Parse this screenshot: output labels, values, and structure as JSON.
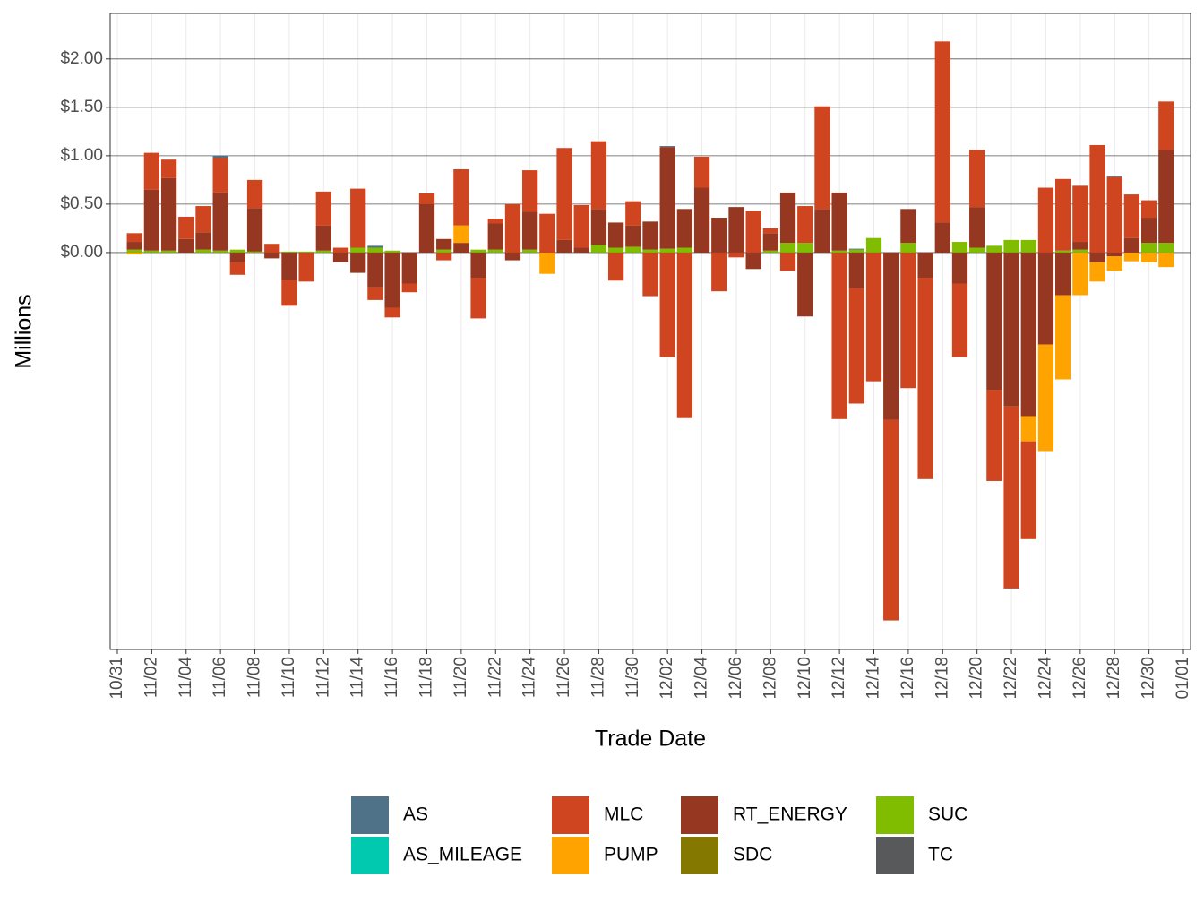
{
  "chart_data": {
    "type": "stacked-bar",
    "x_label": "Trade Date",
    "y_label": "Millions",
    "categories": [
      "10/31",
      null,
      "11/02",
      null,
      "11/04",
      null,
      "11/06",
      null,
      "11/08",
      null,
      "11/10",
      null,
      "11/12",
      null,
      "11/14",
      null,
      "11/16",
      null,
      "11/18",
      null,
      "11/20",
      null,
      "11/22",
      null,
      "11/24",
      null,
      "11/26",
      null,
      "11/28",
      null,
      "11/30",
      null,
      "12/02",
      null,
      "12/04",
      null,
      "12/06",
      null,
      "12/08",
      null,
      "12/10",
      null,
      "12/12",
      null,
      "12/14",
      null,
      "12/16",
      null,
      "12/18",
      null,
      "12/20",
      null,
      "12/22",
      null,
      "12/24",
      null,
      "12/26",
      null,
      "12/28",
      null,
      "12/30",
      null,
      "01/01"
    ],
    "ylim": [
      -4.1,
      2.47
    ],
    "yticks": [
      {
        "value": 0,
        "label": "$0.00"
      },
      {
        "value": 0.5,
        "label": "$0.50"
      },
      {
        "value": 1,
        "label": "$1.00"
      },
      {
        "value": 1.5,
        "label": "$1.50"
      },
      {
        "value": 2,
        "label": "$2.00"
      }
    ],
    "grid": true,
    "series": [
      {
        "name": "AS",
        "color": "#4f7288",
        "values": [
          null,
          0,
          0,
          0,
          0,
          0,
          0.02,
          0,
          0,
          0,
          0,
          0,
          0,
          0,
          0,
          0.02,
          0,
          0,
          0,
          0,
          0,
          0,
          0,
          0,
          0,
          0,
          0,
          0,
          0,
          0,
          0,
          0,
          0.01,
          0,
          0,
          0,
          0,
          0,
          0,
          0,
          0,
          0,
          0,
          0.01,
          0,
          0,
          0,
          0,
          0,
          0,
          0,
          0,
          0,
          0,
          0,
          0,
          0,
          0,
          0.01,
          0,
          0,
          0,
          null
        ]
      },
      {
        "name": "AS_MILEAGE",
        "color": "#00c9b0",
        "values": [
          null,
          0,
          0,
          0,
          0,
          0,
          0,
          0,
          0,
          0,
          0,
          0,
          0,
          0,
          0,
          0,
          0,
          0,
          0,
          0,
          0,
          0,
          0,
          0,
          0,
          0,
          0,
          0,
          0,
          0,
          0,
          0,
          0,
          0,
          0,
          0,
          0,
          0,
          0,
          0,
          0,
          0,
          0,
          0,
          0,
          0,
          0,
          0,
          0,
          0,
          0,
          0,
          0,
          0,
          0,
          0,
          0,
          0,
          0,
          0,
          0,
          0,
          null
        ]
      },
      {
        "name": "MLC",
        "color": "#cf4520",
        "values": [
          null,
          0.09,
          0.38,
          0.19,
          0.23,
          0.27,
          0.36,
          -0.13,
          0.29,
          0.09,
          -0.27,
          -0.3,
          0.35,
          0.05,
          0.61,
          -0.13,
          -0.1,
          -0.09,
          0.11,
          -0.08,
          0.58,
          -0.42,
          0.05,
          0.5,
          0.43,
          0.4,
          0.95,
          0.44,
          0.7,
          -0.29,
          0.25,
          -0.45,
          -1.08,
          -1.71,
          0.32,
          -0.4,
          -0.05,
          0.43,
          0.05,
          -0.19,
          0.38,
          1.06,
          -1.72,
          -1.19,
          -1.33,
          -2.07,
          -1.4,
          -2.08,
          1.87,
          -0.76,
          0.59,
          -0.94,
          -1.88,
          -1.01,
          0.67,
          0.74,
          0.58,
          1.11,
          0.78,
          0.45,
          0.18,
          0.5,
          null
        ]
      },
      {
        "name": "PUMP",
        "color": "#ffa300",
        "values": [
          null,
          -0.02,
          0,
          0,
          0,
          0,
          0,
          0,
          0,
          0,
          0,
          0,
          0,
          0,
          0,
          0,
          0,
          0,
          0,
          0,
          0.18,
          0,
          0,
          0,
          0,
          -0.22,
          0,
          0,
          0,
          0,
          0,
          0,
          0,
          0,
          0,
          0,
          0,
          0,
          0,
          0,
          0,
          0,
          0,
          0,
          0,
          0,
          0,
          0,
          0,
          0,
          0,
          0,
          0,
          -0.26,
          -1.1,
          -0.87,
          -0.44,
          -0.2,
          -0.15,
          -0.09,
          -0.1,
          -0.15,
          null
        ]
      },
      {
        "name": "RT_ENERGY",
        "color": "#963821",
        "values": [
          null,
          0.08,
          0.63,
          0.75,
          0.14,
          0.18,
          0.6,
          -0.1,
          0.45,
          -0.06,
          -0.28,
          0,
          0.26,
          -0.1,
          -0.21,
          -0.36,
          -0.57,
          -0.32,
          0.5,
          0.11,
          0.1,
          -0.26,
          0.27,
          -0.08,
          0.39,
          0,
          0.13,
          0.05,
          0.37,
          0.26,
          0.22,
          0.29,
          1.05,
          0.4,
          0.67,
          0.36,
          0.47,
          -0.17,
          0.18,
          0.52,
          -0.66,
          0.45,
          0.6,
          -0.37,
          0,
          -1.73,
          0.35,
          -0.26,
          0.31,
          -0.32,
          0.42,
          -1.42,
          -1.59,
          -1.69,
          -0.95,
          -0.44,
          0.08,
          -0.1,
          -0.04,
          0.15,
          0.26,
          0.96,
          null
        ]
      },
      {
        "name": "SDC",
        "color": "#857800",
        "values": [
          null,
          0,
          0,
          0,
          0,
          0,
          0,
          0,
          0,
          0,
          0,
          0,
          0,
          0,
          0,
          0,
          0,
          0,
          0,
          0,
          0,
          0,
          0,
          0,
          0,
          0,
          0,
          0,
          0,
          0,
          0,
          0,
          0,
          0,
          0,
          0,
          0,
          0,
          0,
          0,
          0,
          0,
          0,
          0,
          0,
          0,
          0,
          0,
          0,
          0,
          0,
          0,
          0,
          0,
          0,
          0,
          0,
          0,
          0,
          0,
          0,
          0,
          null
        ]
      },
      {
        "name": "SUC",
        "color": "#80bc00",
        "values": [
          null,
          0.03,
          0.02,
          0.02,
          0,
          0.03,
          0.02,
          0.03,
          0.01,
          0,
          0.01,
          0.01,
          0.02,
          0,
          0.05,
          0.05,
          0.02,
          0,
          0,
          0.03,
          0,
          0.03,
          0.03,
          0,
          0.03,
          0,
          0,
          0,
          0.08,
          0.05,
          0.06,
          0.03,
          0.04,
          0.05,
          0,
          0,
          0,
          0,
          0.02,
          0.1,
          0.1,
          0,
          0.02,
          0.03,
          0.15,
          0,
          0.1,
          0,
          0,
          0.11,
          0.05,
          0.07,
          0.13,
          0.13,
          0,
          0.02,
          0.03,
          0,
          0,
          0,
          0.1,
          0.1,
          null
        ]
      },
      {
        "name": "TC",
        "color": "#58595b",
        "values": [
          null,
          0,
          0,
          0,
          0,
          0,
          0,
          0,
          0,
          0,
          0,
          0,
          0,
          0,
          0,
          0,
          0,
          0,
          0,
          0,
          0,
          0,
          0,
          0,
          0,
          0,
          0,
          0,
          0,
          0,
          0,
          0,
          0,
          0,
          0,
          0,
          0,
          0,
          0,
          0,
          0,
          0,
          0,
          0,
          0,
          0,
          0,
          0,
          0,
          0,
          0,
          0,
          0,
          0,
          0,
          0,
          0,
          0,
          0,
          0,
          0,
          0,
          null
        ]
      }
    ]
  }
}
